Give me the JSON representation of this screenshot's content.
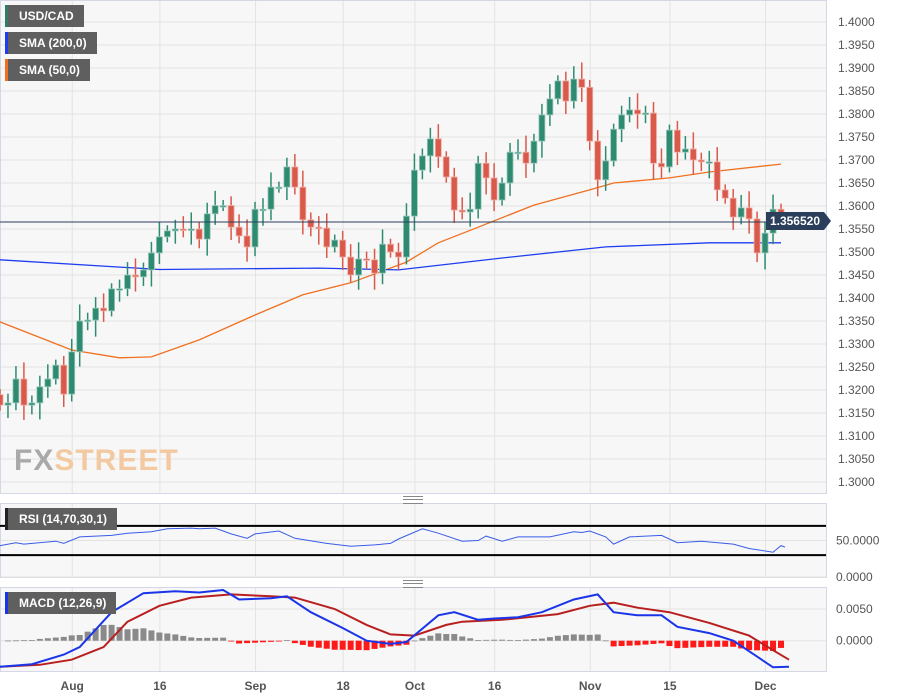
{
  "legend": {
    "symbol": "USD/CAD",
    "sma200": "SMA (200,0)",
    "sma50": "SMA (50,0)",
    "rsi": "RSI (14,70,30,1)",
    "macd": "MACD (12,26,9)"
  },
  "watermark": {
    "part1": "FX",
    "part2": "STREET"
  },
  "current_price": "1.356520",
  "colors": {
    "up": "#2e8b72",
    "down": "#d9594a",
    "sma200": "#1f3df0",
    "sma50": "#f07020",
    "rsi": "#3a5ce8",
    "macd": "#1a35e8",
    "signal": "#b82020",
    "hist_pos": "#8a8a8a",
    "hist_neg": "#ff1a1a",
    "price_line": "#2b3e5c"
  },
  "chart_data": [
    {
      "type": "candlestick",
      "title": "USD/CAD",
      "ylim": [
        1.2975,
        1.4025
      ],
      "y_ticks": [
        "1.4000",
        "1.3950",
        "1.3900",
        "1.3850",
        "1.3800",
        "1.3750",
        "1.3700",
        "1.3650",
        "1.3600",
        "1.3550",
        "1.3500",
        "1.3450",
        "1.3400",
        "1.3350",
        "1.3300",
        "1.3250",
        "1.3200",
        "1.3150",
        "1.3100",
        "1.3050",
        "1.3000"
      ],
      "x_ticks": [
        "Aug",
        "16",
        "Sep",
        "18",
        "Oct",
        "16",
        "Nov",
        "15",
        "Dec"
      ],
      "x_tick_index": [
        9,
        20,
        32,
        43,
        52,
        62,
        74,
        84,
        96
      ],
      "first_open": 1.319,
      "closes": [
        1.3167,
        1.3172,
        1.3224,
        1.3167,
        1.3172,
        1.3207,
        1.3224,
        1.3254,
        1.3191,
        1.3283,
        1.335,
        1.3352,
        1.3378,
        1.3372,
        1.342,
        1.342,
        1.345,
        1.3446,
        1.3461,
        1.3498,
        1.3533,
        1.3546,
        1.355,
        1.3548,
        1.355,
        1.3528,
        1.3583,
        1.3601,
        1.3601,
        1.3554,
        1.3535,
        1.3511,
        1.3593,
        1.3593,
        1.3641,
        1.3641,
        1.3685,
        1.3641,
        1.357,
        1.3554,
        1.3552,
        1.3511,
        1.3526,
        1.3489,
        1.345,
        1.3485,
        1.3483,
        1.3454,
        1.3517,
        1.35,
        1.3489,
        1.3578,
        1.3678,
        1.3709,
        1.3746,
        1.3707,
        1.3663,
        1.3591,
        1.3587,
        1.3593,
        1.3693,
        1.3661,
        1.3613,
        1.365,
        1.3717,
        1.3717,
        1.3693,
        1.3741,
        1.3798,
        1.3833,
        1.3872,
        1.3828,
        1.3876,
        1.3858,
        1.3741,
        1.3657,
        1.3698,
        1.3767,
        1.3798,
        1.3809,
        1.38,
        1.3802,
        1.3693,
        1.3685,
        1.3765,
        1.3717,
        1.3724,
        1.37,
        1.3696,
        1.3696,
        1.3635,
        1.3617,
        1.3576,
        1.3596,
        1.3572,
        1.3498,
        1.3541,
        1.3593,
        1.3565
      ],
      "sma200": [
        [
          0,
          1.3483
        ],
        [
          20,
          1.3462
        ],
        [
          40,
          1.3465
        ],
        [
          50,
          1.3461
        ],
        [
          63,
          1.3487
        ],
        [
          76,
          1.3511
        ],
        [
          89,
          1.352
        ],
        [
          98,
          1.352
        ]
      ],
      "sma50": [
        [
          0,
          1.3348
        ],
        [
          9,
          1.3287
        ],
        [
          15,
          1.327
        ],
        [
          19,
          1.3272
        ],
        [
          25,
          1.3309
        ],
        [
          32,
          1.3363
        ],
        [
          38,
          1.3407
        ],
        [
          44,
          1.3433
        ],
        [
          51,
          1.3478
        ],
        [
          55,
          1.352
        ],
        [
          60,
          1.3554
        ],
        [
          67,
          1.3602
        ],
        [
          74,
          1.3635
        ],
        [
          77,
          1.365
        ],
        [
          84,
          1.3661
        ],
        [
          89,
          1.3674
        ],
        [
          98,
          1.3691
        ]
      ]
    },
    {
      "type": "line",
      "title": "RSI (14,70,30,1)",
      "ylim": [
        0,
        100
      ],
      "levels": [
        70,
        30
      ],
      "y_ticks": [
        "50.0000",
        "0.0000"
      ],
      "y_tick_values": [
        50,
        0
      ],
      "series": [
        [
          0,
          43
        ],
        [
          2,
          47
        ],
        [
          3,
          45
        ],
        [
          7,
          49
        ],
        [
          8,
          46
        ],
        [
          10,
          55
        ],
        [
          14,
          57
        ],
        [
          16,
          60
        ],
        [
          19,
          62
        ],
        [
          21,
          66
        ],
        [
          24,
          67
        ],
        [
          25,
          66
        ],
        [
          27,
          67
        ],
        [
          29,
          59
        ],
        [
          31,
          53
        ],
        [
          32,
          59
        ],
        [
          35,
          63
        ],
        [
          37,
          53
        ],
        [
          41,
          46
        ],
        [
          44,
          42
        ],
        [
          47,
          44
        ],
        [
          49,
          46
        ],
        [
          50,
          52
        ],
        [
          53,
          66
        ],
        [
          55,
          60
        ],
        [
          58,
          49
        ],
        [
          60,
          50
        ],
        [
          61,
          56
        ],
        [
          63,
          49
        ],
        [
          65,
          55
        ],
        [
          69,
          55
        ],
        [
          72,
          62
        ],
        [
          73,
          61
        ],
        [
          74,
          63
        ],
        [
          76,
          55
        ],
        [
          77,
          45
        ],
        [
          79,
          55
        ],
        [
          83,
          57
        ],
        [
          85,
          47
        ],
        [
          88,
          49
        ],
        [
          92,
          45
        ],
        [
          94,
          39
        ],
        [
          97,
          34
        ],
        [
          98,
          43
        ],
        [
          98.5,
          41
        ]
      ]
    },
    {
      "type": "line",
      "title": "MACD (12,26,9)",
      "ylim": [
        -0.005,
        0.0085
      ],
      "y_ticks": [
        "0.0050",
        "0.0000"
      ],
      "y_tick_values": [
        0.005,
        0
      ],
      "macd": [
        [
          0,
          -0.0041
        ],
        [
          4,
          -0.0037
        ],
        [
          8,
          -0.0022
        ],
        [
          10,
          -0.001
        ],
        [
          14,
          0.0045
        ],
        [
          18,
          0.0075
        ],
        [
          22,
          0.0078
        ],
        [
          25,
          0.0076
        ],
        [
          28,
          0.008
        ],
        [
          30,
          0.0065
        ],
        [
          34,
          0.0067
        ],
        [
          36,
          0.007
        ],
        [
          39,
          0.0045
        ],
        [
          43,
          0.002
        ],
        [
          46,
          0.0
        ],
        [
          49,
          -0.0005
        ],
        [
          51,
          -0.0002
        ],
        [
          55,
          0.004
        ],
        [
          57,
          0.0045
        ],
        [
          60,
          0.0033
        ],
        [
          62,
          0.0035
        ],
        [
          65,
          0.0037
        ],
        [
          68,
          0.0045
        ],
        [
          72,
          0.0065
        ],
        [
          75,
          0.0073
        ],
        [
          77,
          0.0045
        ],
        [
          80,
          0.004
        ],
        [
          83,
          0.004
        ],
        [
          85,
          0.0022
        ],
        [
          89,
          0.0012
        ],
        [
          92,
          0.0
        ],
        [
          95,
          -0.0025
        ],
        [
          97,
          -0.0042
        ],
        [
          99,
          -0.0041
        ]
      ],
      "signal": [
        [
          0,
          -0.0041
        ],
        [
          5,
          -0.0038
        ],
        [
          9,
          -0.003
        ],
        [
          13,
          -0.001
        ],
        [
          16,
          0.003
        ],
        [
          20,
          0.0055
        ],
        [
          24,
          0.0068
        ],
        [
          29,
          0.0073
        ],
        [
          34,
          0.007
        ],
        [
          37,
          0.0068
        ],
        [
          42,
          0.005
        ],
        [
          46,
          0.0025
        ],
        [
          49,
          0.001
        ],
        [
          52,
          0.0008
        ],
        [
          56,
          0.0025
        ],
        [
          58,
          0.003
        ],
        [
          63,
          0.0033
        ],
        [
          70,
          0.0042
        ],
        [
          74,
          0.0055
        ],
        [
          77,
          0.006
        ],
        [
          80,
          0.0052
        ],
        [
          84,
          0.0045
        ],
        [
          89,
          0.0028
        ],
        [
          94,
          0.0008
        ],
        [
          97,
          -0.0015
        ],
        [
          99,
          -0.003
        ]
      ]
    }
  ]
}
